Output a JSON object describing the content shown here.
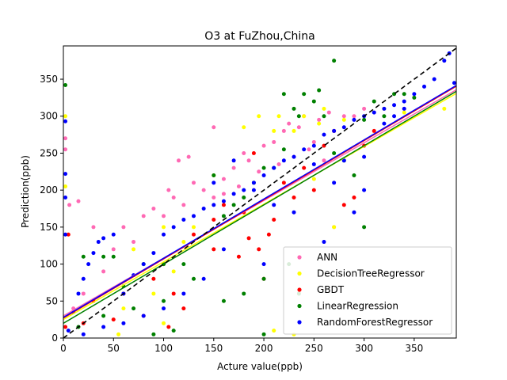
{
  "chart_data": {
    "type": "scatter",
    "title": "O3 at FuZhou,China",
    "xlabel": "Acture value(ppb)",
    "ylabel": "Prediction(ppb)",
    "xlim": [
      0,
      392
    ],
    "ylim": [
      0,
      395
    ],
    "xticks": [
      0,
      50,
      100,
      150,
      200,
      250,
      300,
      350
    ],
    "yticks": [
      0,
      50,
      100,
      150,
      200,
      250,
      300,
      350
    ],
    "grid": false,
    "legend_position": "lower-right",
    "identity_line": {
      "style": "dashed",
      "color": "#000000",
      "from": [
        0,
        0
      ],
      "to": [
        392,
        392
      ]
    },
    "series": [
      {
        "name": "ANN",
        "color": "#ff69b4",
        "fit": {
          "intercept": 30,
          "slope": 0.78
        },
        "points": [
          [
            2,
            270
          ],
          [
            2,
            255
          ],
          [
            6,
            180
          ],
          [
            15,
            185
          ],
          [
            30,
            150
          ],
          [
            60,
            150
          ],
          [
            80,
            165
          ],
          [
            90,
            175
          ],
          [
            100,
            165
          ],
          [
            105,
            200
          ],
          [
            110,
            190
          ],
          [
            115,
            240
          ],
          [
            125,
            245
          ],
          [
            130,
            210
          ],
          [
            150,
            285
          ],
          [
            150,
            190
          ],
          [
            160,
            215
          ],
          [
            170,
            230
          ],
          [
            180,
            250
          ],
          [
            185,
            240
          ],
          [
            200,
            260
          ],
          [
            210,
            265
          ],
          [
            220,
            280
          ],
          [
            225,
            290
          ],
          [
            235,
            285
          ],
          [
            240,
            300
          ],
          [
            255,
            295
          ],
          [
            265,
            305
          ],
          [
            280,
            300
          ],
          [
            290,
            300
          ],
          [
            300,
            310
          ],
          [
            340,
            310
          ],
          [
            50,
            120
          ],
          [
            70,
            130
          ],
          [
            40,
            90
          ],
          [
            20,
            60
          ],
          [
            10,
            40
          ],
          [
            120,
            180
          ],
          [
            140,
            200
          ],
          [
            160,
            195
          ],
          [
            175,
            205
          ],
          [
            195,
            225
          ],
          [
            215,
            235
          ],
          [
            230,
            245
          ],
          [
            250,
            265
          ],
          [
            270,
            150
          ],
          [
            260,
            240
          ],
          [
            245,
            255
          ]
        ]
      },
      {
        "name": "DecisionTreeRegressor",
        "color": "#ffff00",
        "fit": {
          "intercept": 25,
          "slope": 0.78
        },
        "points": [
          [
            2,
            205
          ],
          [
            2,
            300
          ],
          [
            55,
            5
          ],
          [
            60,
            40
          ],
          [
            70,
            120
          ],
          [
            90,
            60
          ],
          [
            100,
            20
          ],
          [
            110,
            90
          ],
          [
            130,
            150
          ],
          [
            150,
            220
          ],
          [
            180,
            285
          ],
          [
            195,
            300
          ],
          [
            210,
            280
          ],
          [
            215,
            300
          ],
          [
            230,
            280
          ],
          [
            240,
            300
          ],
          [
            250,
            215
          ],
          [
            255,
            290
          ],
          [
            260,
            310
          ],
          [
            280,
            295
          ],
          [
            300,
            300
          ],
          [
            320,
            310
          ],
          [
            340,
            305
          ],
          [
            380,
            310
          ],
          [
            210,
            10
          ],
          [
            230,
            5
          ],
          [
            270,
            150
          ],
          [
            100,
            150
          ],
          [
            120,
            130
          ]
        ]
      },
      {
        "name": "GBDT",
        "color": "#ff0000",
        "fit": {
          "intercept": 27,
          "slope": 0.8
        },
        "points": [
          [
            2,
            15
          ],
          [
            5,
            140
          ],
          [
            20,
            20
          ],
          [
            30,
            50
          ],
          [
            50,
            25
          ],
          [
            60,
            60
          ],
          [
            80,
            30
          ],
          [
            90,
            80
          ],
          [
            100,
            100
          ],
          [
            105,
            15
          ],
          [
            110,
            60
          ],
          [
            120,
            40
          ],
          [
            130,
            140
          ],
          [
            150,
            160
          ],
          [
            160,
            180
          ],
          [
            180,
            170
          ],
          [
            190,
            250
          ],
          [
            200,
            80
          ],
          [
            210,
            160
          ],
          [
            230,
            190
          ],
          [
            240,
            230
          ],
          [
            250,
            200
          ],
          [
            260,
            260
          ],
          [
            270,
            280
          ],
          [
            280,
            180
          ],
          [
            290,
            190
          ],
          [
            300,
            260
          ],
          [
            310,
            280
          ],
          [
            150,
            120
          ],
          [
            175,
            110
          ],
          [
            195,
            120
          ],
          [
            220,
            210
          ],
          [
            205,
            140
          ],
          [
            185,
            135
          ]
        ]
      },
      {
        "name": "LinearRegression",
        "color": "#008000",
        "fit": {
          "intercept": 20,
          "slope": 0.8
        },
        "points": [
          [
            2,
            342
          ],
          [
            20,
            110
          ],
          [
            40,
            110
          ],
          [
            50,
            110
          ],
          [
            60,
            70
          ],
          [
            80,
            100
          ],
          [
            100,
            100
          ],
          [
            120,
            100
          ],
          [
            130,
            80
          ],
          [
            150,
            220
          ],
          [
            160,
            165
          ],
          [
            170,
            180
          ],
          [
            180,
            190
          ],
          [
            190,
            210
          ],
          [
            200,
            230
          ],
          [
            210,
            230
          ],
          [
            220,
            330
          ],
          [
            230,
            310
          ],
          [
            235,
            300
          ],
          [
            240,
            330
          ],
          [
            250,
            320
          ],
          [
            255,
            335
          ],
          [
            260,
            300
          ],
          [
            270,
            375
          ],
          [
            270,
            250
          ],
          [
            280,
            240
          ],
          [
            290,
            220
          ],
          [
            300,
            295
          ],
          [
            300,
            150
          ],
          [
            310,
            320
          ],
          [
            320,
            300
          ],
          [
            330,
            330
          ],
          [
            340,
            330
          ],
          [
            350,
            325
          ],
          [
            220,
            255
          ],
          [
            225,
            100
          ],
          [
            235,
            60
          ],
          [
            200,
            80
          ],
          [
            180,
            60
          ],
          [
            160,
            50
          ],
          [
            100,
            50
          ],
          [
            70,
            40
          ],
          [
            40,
            30
          ],
          [
            15,
            15
          ],
          [
            110,
            10
          ],
          [
            90,
            5
          ],
          [
            200,
            5
          ]
        ]
      },
      {
        "name": "RandomForestRegressor",
        "color": "#0000ff",
        "fit": {
          "intercept": 28,
          "slope": 0.8
        },
        "points": [
          [
            2,
            293
          ],
          [
            2,
            222
          ],
          [
            2,
            190
          ],
          [
            2,
            140
          ],
          [
            5,
            10
          ],
          [
            10,
            35
          ],
          [
            15,
            60
          ],
          [
            20,
            80
          ],
          [
            25,
            100
          ],
          [
            30,
            115
          ],
          [
            35,
            130
          ],
          [
            40,
            135
          ],
          [
            50,
            140
          ],
          [
            60,
            60
          ],
          [
            70,
            85
          ],
          [
            80,
            100
          ],
          [
            90,
            115
          ],
          [
            100,
            140
          ],
          [
            110,
            150
          ],
          [
            120,
            160
          ],
          [
            130,
            165
          ],
          [
            140,
            175
          ],
          [
            150,
            180
          ],
          [
            160,
            185
          ],
          [
            170,
            195
          ],
          [
            180,
            200
          ],
          [
            190,
            210
          ],
          [
            200,
            220
          ],
          [
            210,
            230
          ],
          [
            220,
            240
          ],
          [
            230,
            245
          ],
          [
            240,
            255
          ],
          [
            250,
            260
          ],
          [
            260,
            275
          ],
          [
            270,
            280
          ],
          [
            280,
            285
          ],
          [
            290,
            295
          ],
          [
            300,
            300
          ],
          [
            310,
            305
          ],
          [
            320,
            310
          ],
          [
            330,
            315
          ],
          [
            340,
            320
          ],
          [
            350,
            330
          ],
          [
            360,
            340
          ],
          [
            370,
            350
          ],
          [
            380,
            375
          ],
          [
            385,
            385
          ],
          [
            390,
            345
          ],
          [
            150,
            210
          ],
          [
            170,
            240
          ],
          [
            190,
            200
          ],
          [
            210,
            180
          ],
          [
            230,
            170
          ],
          [
            160,
            120
          ],
          [
            140,
            80
          ],
          [
            120,
            60
          ],
          [
            100,
            40
          ],
          [
            80,
            30
          ],
          [
            60,
            20
          ],
          [
            40,
            15
          ],
          [
            20,
            5
          ],
          [
            250,
            235
          ],
          [
            270,
            210
          ],
          [
            280,
            240
          ],
          [
            300,
            245
          ],
          [
            320,
            290
          ],
          [
            330,
            300
          ],
          [
            340,
            310
          ],
          [
            300,
            200
          ],
          [
            290,
            170
          ],
          [
            260,
            130
          ],
          [
            200,
            100
          ]
        ]
      }
    ]
  }
}
